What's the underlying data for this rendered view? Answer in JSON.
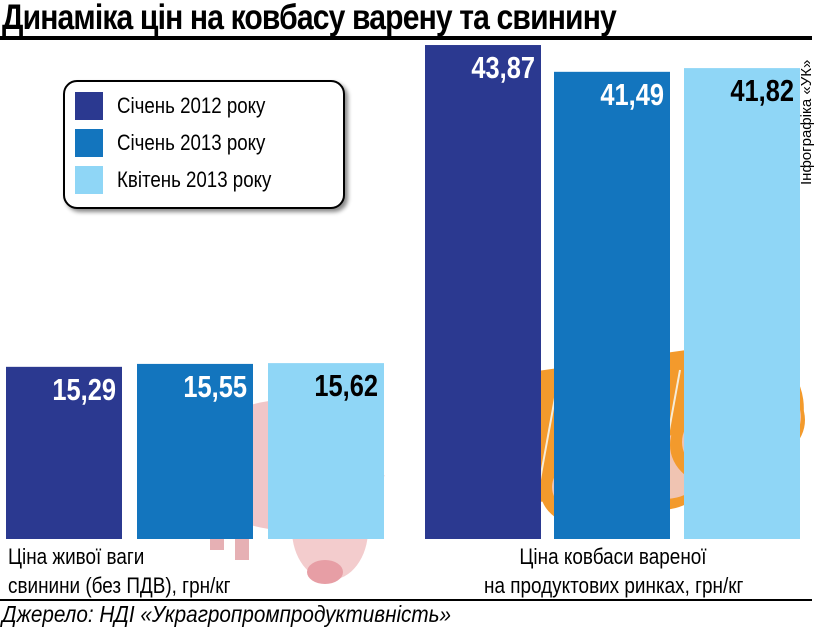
{
  "title": "Динаміка цін на ковбасу варену та свинину",
  "credit": "Інфографіка «УК»",
  "source": "Джерело: НДІ «Украгропромпродуктивність»",
  "chart_data": {
    "type": "bar",
    "title": "Динаміка цін на ковбасу варену та свинину",
    "categories": [
      "Ціна живої ваги свинини (без ПДВ), грн/кг",
      "Ціна ковбаси вареної на продуктових ринках, грн/кг"
    ],
    "category_lines": [
      [
        "Ціна живої ваги",
        "свинини (без ПДВ), грн/кг"
      ],
      [
        "Ціна ковбаси вареної",
        "на продуктових ринках, грн/кг"
      ]
    ],
    "series": [
      {
        "name": "Січень 2012 року",
        "color": "#2b3990",
        "label_color": "#ffffff",
        "values": [
          15.29,
          43.87
        ],
        "labels": [
          "15,29",
          "43,87"
        ]
      },
      {
        "name": "Січень 2013 року",
        "color": "#1375be",
        "label_color": "#ffffff",
        "values": [
          15.55,
          41.49
        ],
        "labels": [
          "15,55",
          "41,49"
        ]
      },
      {
        "name": "Квітень 2013 року",
        "color": "#8fd6f6",
        "label_color": "#000000",
        "values": [
          15.62,
          41.82
        ],
        "labels": [
          "15,62",
          "41,82"
        ]
      }
    ],
    "ylim": [
      0,
      45
    ],
    "grid": false,
    "legend": "top-left",
    "xlabel": "",
    "ylabel": ""
  }
}
